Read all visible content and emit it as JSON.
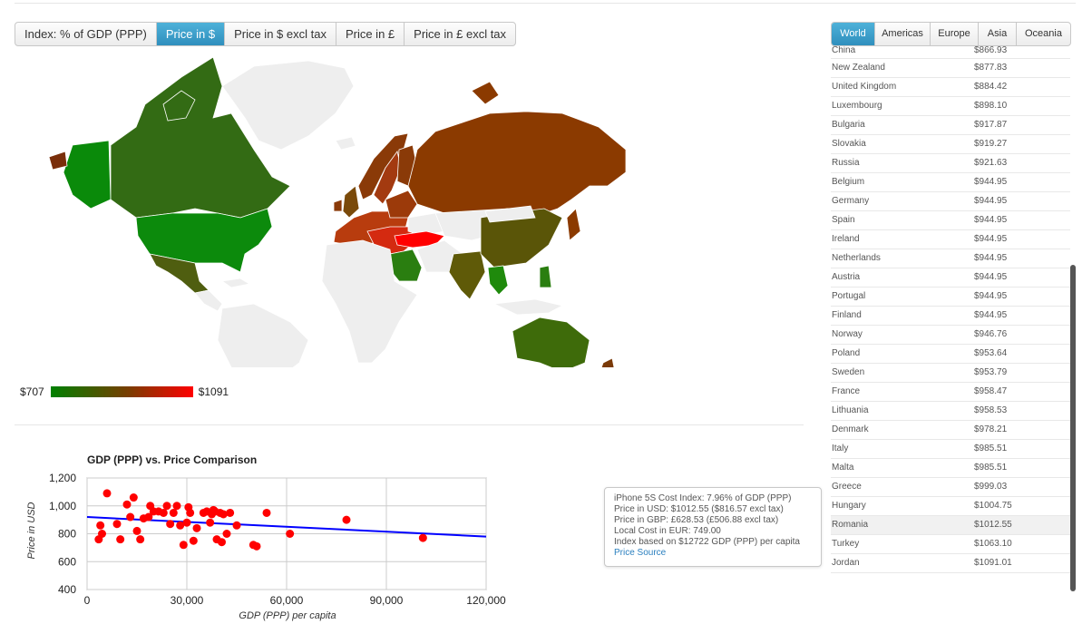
{
  "metric_tabs": [
    {
      "label": "Index: % of GDP (PPP)",
      "active": false
    },
    {
      "label": "Price in $",
      "active": true
    },
    {
      "label": "Price in $ excl tax",
      "active": false
    },
    {
      "label": "Price in £",
      "active": false
    },
    {
      "label": "Price in £ excl tax",
      "active": false
    }
  ],
  "region_tabs": [
    {
      "label": "World",
      "active": true
    },
    {
      "label": "Americas",
      "active": false
    },
    {
      "label": "Europe",
      "active": false
    },
    {
      "label": "Asia",
      "active": false
    },
    {
      "label": "Oceania",
      "active": false
    }
  ],
  "map_legend": {
    "min": "$707",
    "max": "$1091",
    "color_low": "#008000",
    "color_mid": "#7a3c00",
    "color_high": "#ff0000"
  },
  "price_list": [
    {
      "country": "China",
      "price": "$866.93"
    },
    {
      "country": "New Zealand",
      "price": "$877.83"
    },
    {
      "country": "United Kingdom",
      "price": "$884.42"
    },
    {
      "country": "Luxembourg",
      "price": "$898.10"
    },
    {
      "country": "Bulgaria",
      "price": "$917.87"
    },
    {
      "country": "Slovakia",
      "price": "$919.27"
    },
    {
      "country": "Russia",
      "price": "$921.63"
    },
    {
      "country": "Belgium",
      "price": "$944.95"
    },
    {
      "country": "Germany",
      "price": "$944.95"
    },
    {
      "country": "Spain",
      "price": "$944.95"
    },
    {
      "country": "Ireland",
      "price": "$944.95"
    },
    {
      "country": "Netherlands",
      "price": "$944.95"
    },
    {
      "country": "Austria",
      "price": "$944.95"
    },
    {
      "country": "Portugal",
      "price": "$944.95"
    },
    {
      "country": "Finland",
      "price": "$944.95"
    },
    {
      "country": "Norway",
      "price": "$946.76"
    },
    {
      "country": "Poland",
      "price": "$953.64"
    },
    {
      "country": "Sweden",
      "price": "$953.79"
    },
    {
      "country": "France",
      "price": "$958.47"
    },
    {
      "country": "Lithuania",
      "price": "$958.53"
    },
    {
      "country": "Denmark",
      "price": "$978.21"
    },
    {
      "country": "Italy",
      "price": "$985.51"
    },
    {
      "country": "Malta",
      "price": "$985.51"
    },
    {
      "country": "Greece",
      "price": "$999.03"
    },
    {
      "country": "Hungary",
      "price": "$1004.75"
    },
    {
      "country": "Romania",
      "price": "$1012.55",
      "highlight": true
    },
    {
      "country": "Turkey",
      "price": "$1063.10"
    },
    {
      "country": "Jordan",
      "price": "$1091.01"
    }
  ],
  "tooltip": {
    "line1": "iPhone 5S Cost Index: 7.96% of GDP (PPP)",
    "line2": "Price in USD: $1012.55 ($816.57 excl tax)",
    "line3": "Price in GBP: £628.53 (£506.88 excl tax)",
    "line4": "Local Cost in EUR: 749.00",
    "line5": "Index based on $12722 GDP (PPP) per capita",
    "link": "Price Source"
  },
  "chart_data": {
    "type": "scatter",
    "title": "GDP (PPP) vs. Price Comparison",
    "xlabel": "GDP (PPP) per capita",
    "ylabel": "Price in USD",
    "xlim": [
      0,
      120000
    ],
    "ylim": [
      400,
      1200
    ],
    "x_ticks": [
      "0",
      "30,000",
      "60,000",
      "90,000",
      "120,000"
    ],
    "y_ticks": [
      "400",
      "600",
      "800",
      "1,000",
      "1,200"
    ],
    "grid": true,
    "point_color": "#ff0000",
    "trend_color": "#0000ff",
    "trendline": [
      [
        0,
        920
      ],
      [
        120000,
        780
      ]
    ],
    "points": [
      [
        3500,
        760
      ],
      [
        4000,
        860
      ],
      [
        4500,
        800
      ],
      [
        6000,
        1090
      ],
      [
        9000,
        870
      ],
      [
        10000,
        760
      ],
      [
        12000,
        1010
      ],
      [
        13000,
        920
      ],
      [
        14000,
        1060
      ],
      [
        15000,
        820
      ],
      [
        16000,
        760
      ],
      [
        17000,
        910
      ],
      [
        18500,
        920
      ],
      [
        19000,
        1000
      ],
      [
        20000,
        960
      ],
      [
        21500,
        960
      ],
      [
        23000,
        950
      ],
      [
        24000,
        1000
      ],
      [
        25000,
        870
      ],
      [
        26000,
        950
      ],
      [
        27000,
        1000
      ],
      [
        28000,
        860
      ],
      [
        29000,
        720
      ],
      [
        30000,
        880
      ],
      [
        30500,
        990
      ],
      [
        31000,
        950
      ],
      [
        32000,
        750
      ],
      [
        33000,
        840
      ],
      [
        35000,
        950
      ],
      [
        36000,
        960
      ],
      [
        37000,
        880
      ],
      [
        37500,
        940
      ],
      [
        38000,
        970
      ],
      [
        38500,
        960
      ],
      [
        39000,
        760
      ],
      [
        40000,
        950
      ],
      [
        40500,
        740
      ],
      [
        41000,
        940
      ],
      [
        42000,
        800
      ],
      [
        43000,
        950
      ],
      [
        45000,
        860
      ],
      [
        50000,
        720
      ],
      [
        51000,
        710
      ],
      [
        54000,
        950
      ],
      [
        61000,
        800
      ],
      [
        78000,
        900
      ],
      [
        101000,
        770
      ]
    ]
  }
}
